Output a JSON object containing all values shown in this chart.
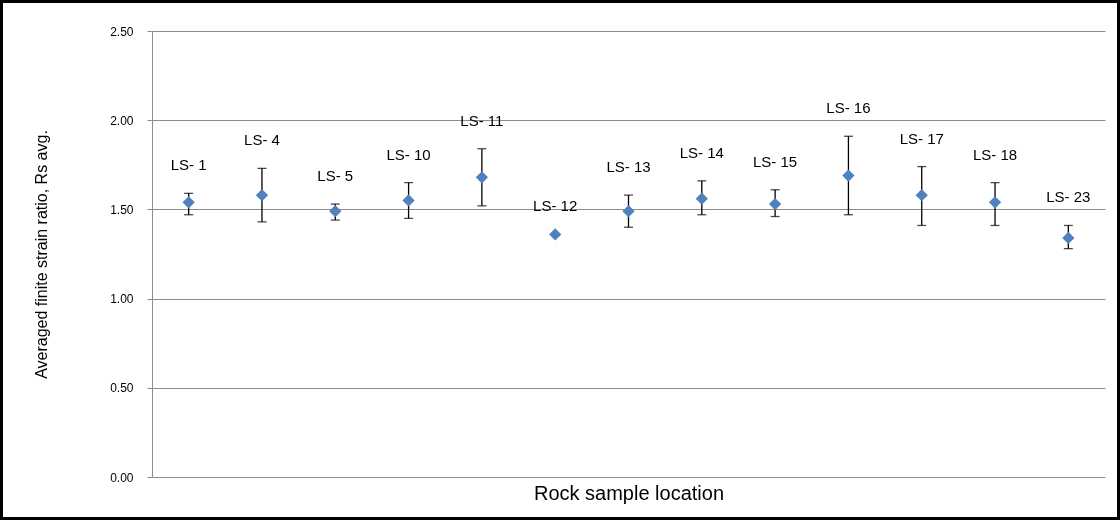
{
  "chart_data": {
    "type": "scatter",
    "xlabel": "Rock sample location",
    "ylabel": "Averaged finite strain ratio, Rs avg.",
    "categories": [
      "LS- 1",
      "LS- 4",
      "LS- 5",
      "LS- 10",
      "LS- 11",
      "LS- 12",
      "LS- 13",
      "LS- 14",
      "LS- 15",
      "LS- 16",
      "LS- 17",
      "LS- 18",
      "LS- 23"
    ],
    "values": [
      1.54,
      1.58,
      1.49,
      1.55,
      1.68,
      1.36,
      1.49,
      1.56,
      1.53,
      1.69,
      1.58,
      1.54,
      1.34
    ],
    "errors": [
      [
        1.47,
        1.59
      ],
      [
        1.43,
        1.73
      ],
      [
        1.44,
        1.53
      ],
      [
        1.45,
        1.65
      ],
      [
        1.52,
        1.84
      ],
      null,
      [
        1.4,
        1.58
      ],
      [
        1.47,
        1.66
      ],
      [
        1.46,
        1.61
      ],
      [
        1.47,
        1.91
      ],
      [
        1.41,
        1.74
      ],
      [
        1.41,
        1.65
      ],
      [
        1.28,
        1.41
      ]
    ],
    "color": "#4f81bd",
    "marker": "diamond",
    "ylim": [
      0,
      2.5
    ],
    "yticks": [
      {
        "value": 0,
        "label": "0.00"
      },
      {
        "value": 0.5,
        "label": "0.50"
      },
      {
        "value": 1,
        "label": "1.00"
      },
      {
        "value": 1.5,
        "label": "1.50"
      },
      {
        "value": 2,
        "label": "2.00"
      },
      {
        "value": 2.5,
        "label": "2.50"
      }
    ],
    "grid": "y",
    "tick_labels": "y"
  }
}
